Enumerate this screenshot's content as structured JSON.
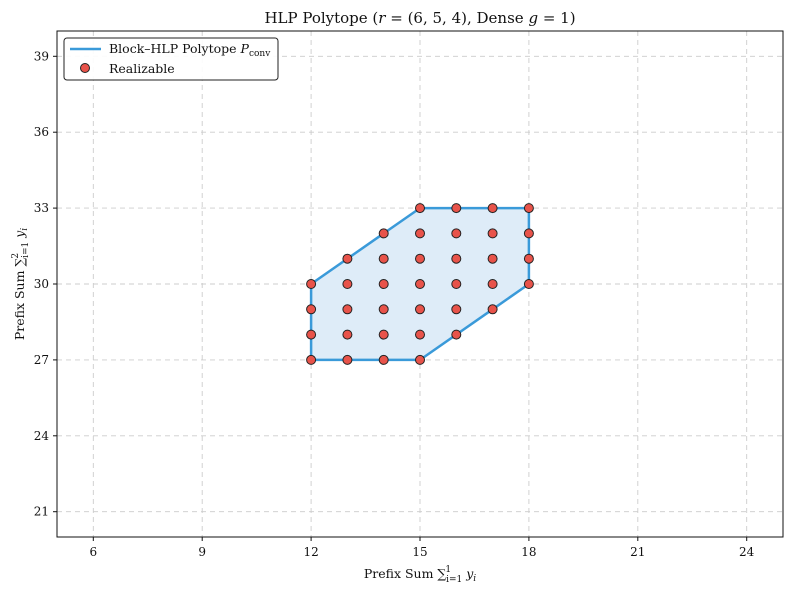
{
  "chart_data": {
    "type": "scatter",
    "title": {
      "text": "HLP Polytope (",
      "r_var": "r",
      "r_value": " = (6, 5, 4), Dense ",
      "g_var": "g",
      "g_value": " = 1)"
    },
    "xlabel": {
      "text": "Prefix Sum ∑",
      "sub": "i=1",
      "sup": "1",
      "var": " y",
      "var_sub": "i"
    },
    "ylabel": {
      "text": "Prefix Sum ∑",
      "sub": "i=1",
      "sup": "2",
      "var": " y",
      "var_sub": "i"
    },
    "xlim": [
      5,
      25
    ],
    "ylim": [
      20,
      40
    ],
    "xticks": [
      6,
      9,
      12,
      15,
      18,
      21,
      24
    ],
    "yticks": [
      21,
      24,
      27,
      30,
      33,
      36,
      39
    ],
    "grid": true,
    "legend_position": "top-left",
    "colors": {
      "polytope_edge": "#3a9ad9",
      "polytope_fill": "#deecf8",
      "point_fill": "#e8534a",
      "point_edge": "#222222",
      "grid": "#cccccc"
    },
    "series": [
      {
        "name": "Block–HLP Polytope ",
        "name_math": "P",
        "name_math_sub": "conv",
        "kind": "polygon",
        "vertices": [
          [
            12,
            27
          ],
          [
            15,
            27
          ],
          [
            17,
            29
          ],
          [
            18,
            30
          ],
          [
            18,
            33
          ],
          [
            15,
            33
          ],
          [
            14,
            32
          ],
          [
            12,
            30
          ],
          [
            12,
            27
          ]
        ]
      },
      {
        "name": "Realizable",
        "kind": "points",
        "points": [
          [
            12,
            27
          ],
          [
            12,
            28
          ],
          [
            12,
            29
          ],
          [
            12,
            30
          ],
          [
            13,
            27
          ],
          [
            13,
            28
          ],
          [
            13,
            29
          ],
          [
            13,
            30
          ],
          [
            13,
            31
          ],
          [
            14,
            27
          ],
          [
            14,
            28
          ],
          [
            14,
            29
          ],
          [
            14,
            30
          ],
          [
            14,
            31
          ],
          [
            14,
            32
          ],
          [
            15,
            27
          ],
          [
            15,
            28
          ],
          [
            15,
            29
          ],
          [
            15,
            30
          ],
          [
            15,
            31
          ],
          [
            15,
            32
          ],
          [
            15,
            33
          ],
          [
            16,
            28
          ],
          [
            16,
            29
          ],
          [
            16,
            30
          ],
          [
            16,
            31
          ],
          [
            16,
            32
          ],
          [
            16,
            33
          ],
          [
            17,
            29
          ],
          [
            17,
            30
          ],
          [
            17,
            31
          ],
          [
            17,
            32
          ],
          [
            17,
            33
          ],
          [
            18,
            30
          ],
          [
            18,
            31
          ],
          [
            18,
            32
          ],
          [
            18,
            33
          ]
        ]
      }
    ]
  }
}
